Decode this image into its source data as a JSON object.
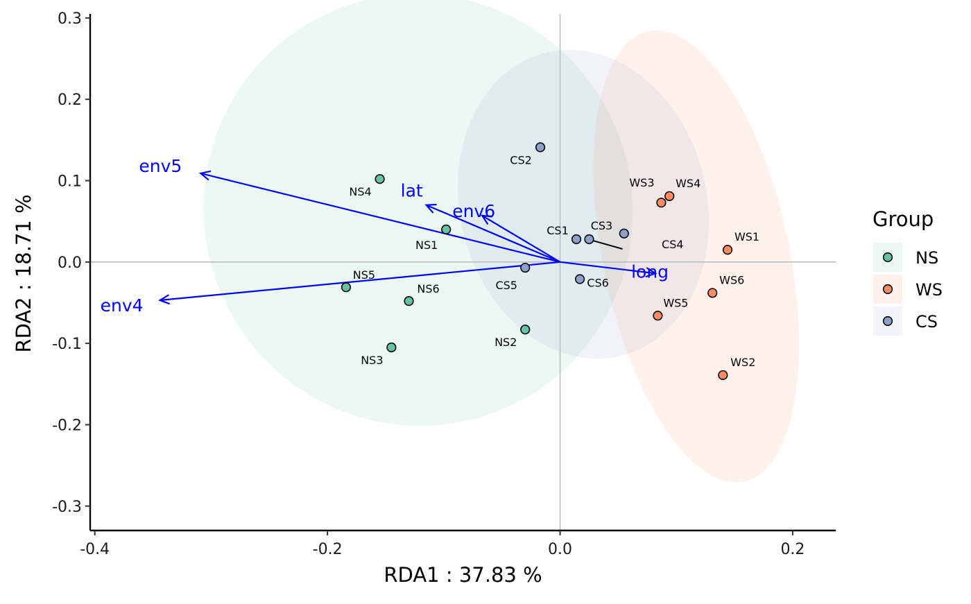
{
  "chart_data": {
    "type": "scatter",
    "xlabel": "RDA1 :  37.83 %",
    "ylabel": "RDA2 :  18.71 %",
    "xlim": [
      -0.404,
      0.237
    ],
    "ylim": [
      -0.33,
      0.305
    ],
    "x_ticks": [
      -0.4,
      -0.2,
      0.0,
      0.2
    ],
    "x_tick_labels": [
      "-0.4",
      "-0.2",
      "0.0",
      "0.2"
    ],
    "y_ticks": [
      0.3,
      0.2,
      0.1,
      0.0,
      -0.1,
      -0.2,
      -0.3
    ],
    "y_tick_labels": [
      "0.3",
      "0.2",
      "0.1",
      "0.0",
      "-0.1",
      "-0.2",
      "-0.3"
    ],
    "grid": false,
    "reference_lines": {
      "x": 0,
      "y": 0
    },
    "legend": {
      "title": "Group",
      "placement": "right",
      "entries": [
        {
          "label": "NS",
          "color": "#66c2a5"
        },
        {
          "label": "WS",
          "color": "#fc8d62"
        },
        {
          "label": "CS",
          "color": "#8da0cb"
        }
      ]
    },
    "series": [
      {
        "name": "NS",
        "color": "#66c2a5",
        "points": [
          {
            "label": "NS1",
            "x": -0.098,
            "y": 0.04
          },
          {
            "label": "NS2",
            "x": -0.03,
            "y": -0.083
          },
          {
            "label": "NS3",
            "x": -0.145,
            "y": -0.105
          },
          {
            "label": "NS4",
            "x": -0.155,
            "y": 0.102
          },
          {
            "label": "NS5",
            "x": -0.184,
            "y": -0.031
          },
          {
            "label": "NS6",
            "x": -0.13,
            "y": -0.048
          }
        ]
      },
      {
        "name": "WS",
        "color": "#fc8d62",
        "points": [
          {
            "label": "WS1",
            "x": 0.144,
            "y": 0.015
          },
          {
            "label": "WS2",
            "x": 0.14,
            "y": -0.139
          },
          {
            "label": "WS3",
            "x": 0.087,
            "y": 0.073
          },
          {
            "label": "WS4",
            "x": 0.094,
            "y": 0.081
          },
          {
            "label": "WS5",
            "x": 0.084,
            "y": -0.066
          },
          {
            "label": "WS6",
            "x": 0.131,
            "y": -0.038
          }
        ]
      },
      {
        "name": "CS",
        "color": "#8da0cb",
        "points": [
          {
            "label": "CS1",
            "x": 0.014,
            "y": 0.028
          },
          {
            "label": "CS2",
            "x": -0.017,
            "y": 0.141
          },
          {
            "label": "CS3",
            "x": 0.025,
            "y": 0.028
          },
          {
            "label": "CS4",
            "x": 0.055,
            "y": 0.035
          },
          {
            "label": "CS5",
            "x": -0.03,
            "y": -0.007
          },
          {
            "label": "CS6",
            "x": 0.017,
            "y": -0.021
          }
        ]
      }
    ],
    "ellipses": [
      {
        "group": "NS",
        "color": "#66c2a5",
        "center": [
          -0.122,
          0.064
        ],
        "semi_axes": [
          0.184,
          0.266
        ],
        "rotation_deg": -28
      },
      {
        "group": "WS",
        "color": "#fc8d62",
        "center": [
          0.117,
          0.007
        ],
        "semi_axes": [
          0.08,
          0.283
        ],
        "rotation_deg": -12
      },
      {
        "group": "CS",
        "color": "#8da0cb",
        "center": [
          0.02,
          0.071
        ],
        "semi_axes": [
          0.106,
          0.192
        ],
        "rotation_deg": -14
      }
    ],
    "vectors": [
      {
        "label": "env5",
        "x": -0.309,
        "y": 0.109
      },
      {
        "label": "lat",
        "x": -0.115,
        "y": 0.07
      },
      {
        "label": "env6",
        "x": -0.067,
        "y": 0.057
      },
      {
        "label": "long",
        "x": 0.082,
        "y": -0.014
      },
      {
        "label": "env4",
        "x": -0.344,
        "y": -0.047
      }
    ],
    "vector_color": "#0000ff"
  }
}
